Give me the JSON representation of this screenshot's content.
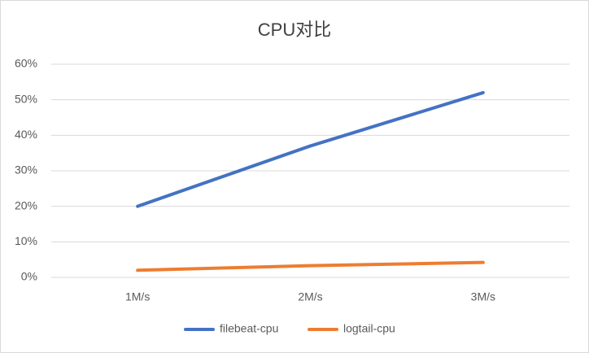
{
  "chart_data": {
    "type": "line",
    "title": "CPU对比",
    "categories": [
      "1M/s",
      "2M/s",
      "3M/s"
    ],
    "series": [
      {
        "name": "filebeat-cpu",
        "color": "#4472c4",
        "values": [
          20,
          37,
          52
        ]
      },
      {
        "name": "logtail-cpu",
        "color": "#ed7d31",
        "values": [
          2,
          3.3,
          4.2
        ]
      }
    ],
    "ylim": [
      0,
      60
    ],
    "yticks": [
      {
        "value": 0,
        "label": "0%"
      },
      {
        "value": 10,
        "label": "10%"
      },
      {
        "value": 20,
        "label": "20%"
      },
      {
        "value": 30,
        "label": "30%"
      },
      {
        "value": 40,
        "label": "40%"
      },
      {
        "value": 50,
        "label": "50%"
      },
      {
        "value": 60,
        "label": "60%"
      }
    ],
    "grid": true,
    "legend": "bottom"
  }
}
